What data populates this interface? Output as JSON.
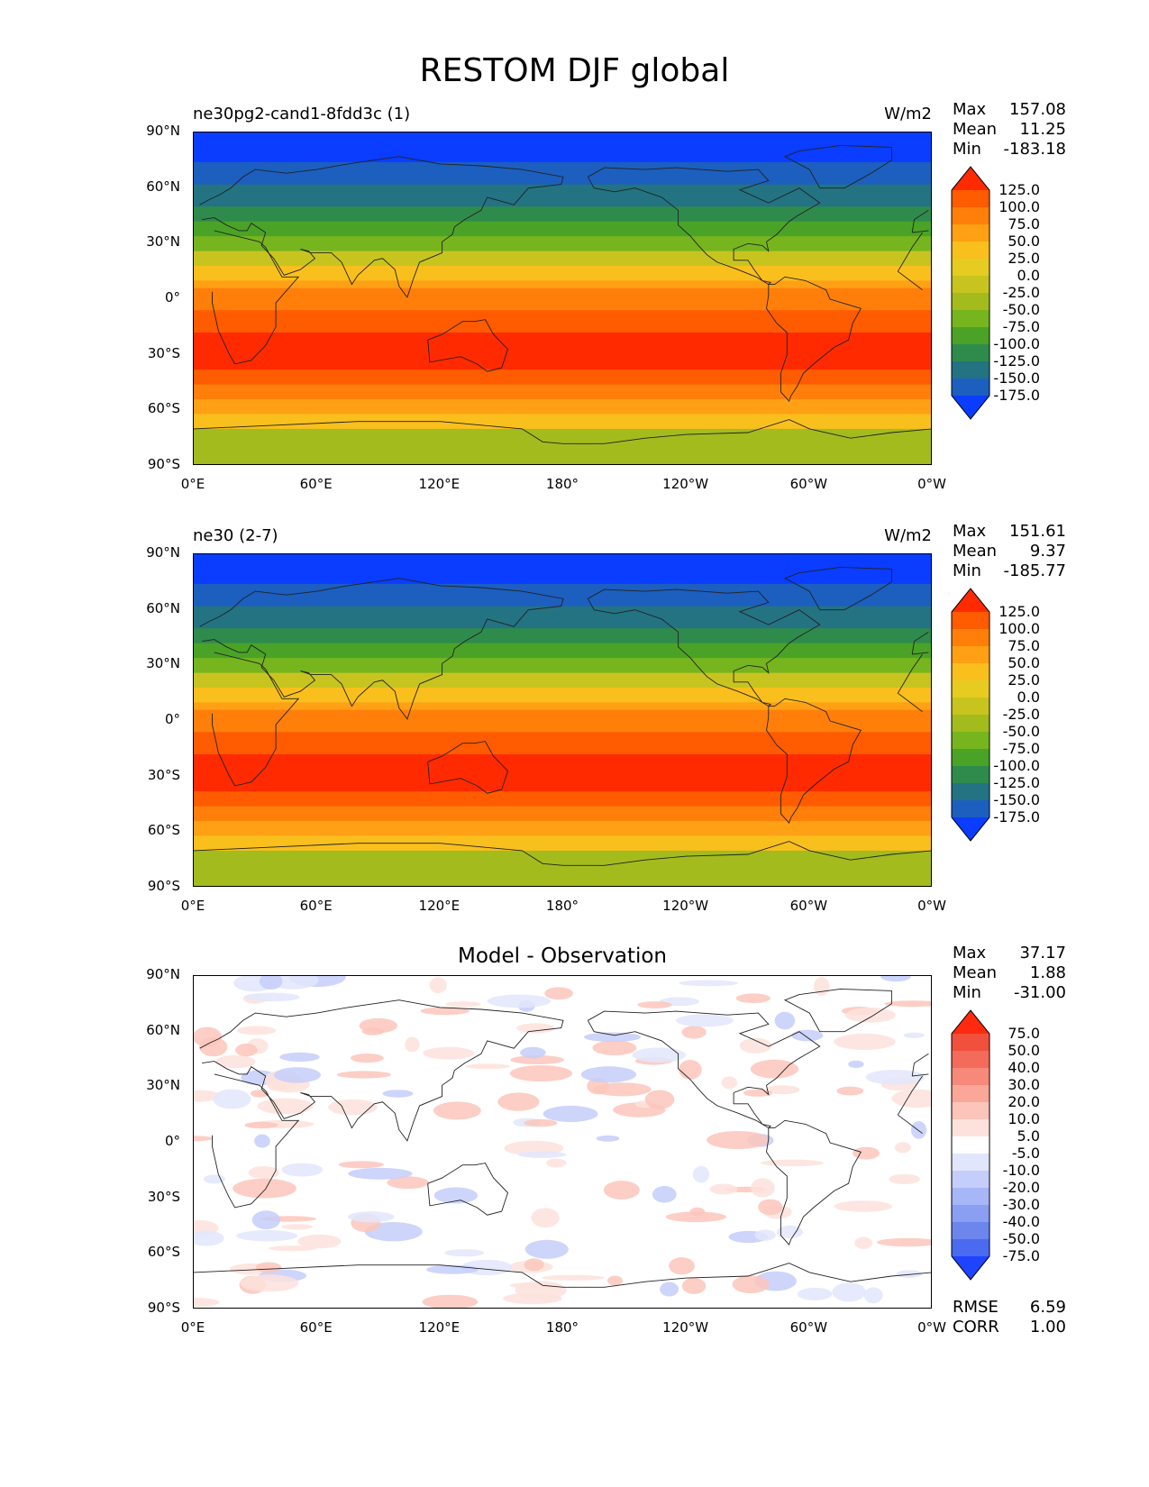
{
  "title": "RESTOM DJF global",
  "chart_data": [
    {
      "type": "heatmap",
      "title_left": "ne30pg2-cand1-8fdd3c (1)",
      "units": "W/m2",
      "stats": {
        "max": "157.08",
        "mean": "11.25",
        "min": "-183.18"
      },
      "xticks": [
        "0°E",
        "60°E",
        "120°E",
        "180°",
        "120°W",
        "60°W",
        "0°W"
      ],
      "yticks": [
        "90°N",
        "60°N",
        "30°N",
        "0°",
        "30°S",
        "60°S",
        "90°S"
      ],
      "xlim": [
        0,
        360
      ],
      "ylim": [
        -90,
        90
      ],
      "colorbar": {
        "levels": [
          "125.0",
          "100.0",
          "75.0",
          "50.0",
          "25.0",
          "0.0",
          "-25.0",
          "-50.0",
          "-75.0",
          "-100.0",
          "-125.0",
          "-150.0",
          "-175.0"
        ],
        "colors": [
          "#ff2a00",
          "#ff5b00",
          "#ff7f0a",
          "#ffa015",
          "#f9bf1c",
          "#e6cc20",
          "#c8c41f",
          "#a3bb1d",
          "#76b51d",
          "#4aa327",
          "#2f8b4c",
          "#237383",
          "#1c5fbf",
          "#0a3dff"
        ]
      }
    },
    {
      "type": "heatmap",
      "title_left": "ne30 (2-7)",
      "units": "W/m2",
      "stats": {
        "max": "151.61",
        "mean": "9.37",
        "min": "-185.77"
      },
      "xticks": [
        "0°E",
        "60°E",
        "120°E",
        "180°",
        "120°W",
        "60°W",
        "0°W"
      ],
      "yticks": [
        "90°N",
        "60°N",
        "30°N",
        "0°",
        "30°S",
        "60°S",
        "90°S"
      ],
      "xlim": [
        0,
        360
      ],
      "ylim": [
        -90,
        90
      ],
      "colorbar": {
        "levels": [
          "125.0",
          "100.0",
          "75.0",
          "50.0",
          "25.0",
          "0.0",
          "-25.0",
          "-50.0",
          "-75.0",
          "-100.0",
          "-125.0",
          "-150.0",
          "-175.0"
        ],
        "colors": [
          "#ff2a00",
          "#ff5b00",
          "#ff7f0a",
          "#ffa015",
          "#f9bf1c",
          "#e6cc20",
          "#c8c41f",
          "#a3bb1d",
          "#76b51d",
          "#4aa327",
          "#2f8b4c",
          "#237383",
          "#1c5fbf",
          "#0a3dff"
        ]
      }
    },
    {
      "type": "heatmap",
      "title_center": "Model - Observation",
      "stats": {
        "max": "37.17",
        "mean": "1.88",
        "min": "-31.00"
      },
      "rmse": "6.59",
      "corr": "1.00",
      "rmse_label": "RMSE",
      "corr_label": "CORR",
      "xticks": [
        "0°E",
        "60°E",
        "120°E",
        "180°",
        "120°W",
        "60°W",
        "0°W"
      ],
      "yticks": [
        "90°N",
        "60°N",
        "30°N",
        "0°",
        "30°S",
        "60°S",
        "90°S"
      ],
      "xlim": [
        0,
        360
      ],
      "ylim": [
        -90,
        90
      ],
      "colorbar": {
        "levels": [
          "75.0",
          "50.0",
          "40.0",
          "30.0",
          "20.0",
          "10.0",
          "5.0",
          "-5.0",
          "-10.0",
          "-20.0",
          "-30.0",
          "-40.0",
          "-50.0",
          "-75.0"
        ],
        "colors": [
          "#ff2a10",
          "#f0503c",
          "#f36b5b",
          "#f7897a",
          "#faa79a",
          "#fcc5bb",
          "#fde2dc",
          "#ffffff",
          "#e2e6fc",
          "#c5cefa",
          "#a7b6f6",
          "#8a9ef2",
          "#6c86ee",
          "#4a6af0",
          "#1f44ff"
        ]
      }
    }
  ],
  "stat_labels": {
    "max": "Max",
    "mean": "Mean",
    "min": "Min"
  }
}
